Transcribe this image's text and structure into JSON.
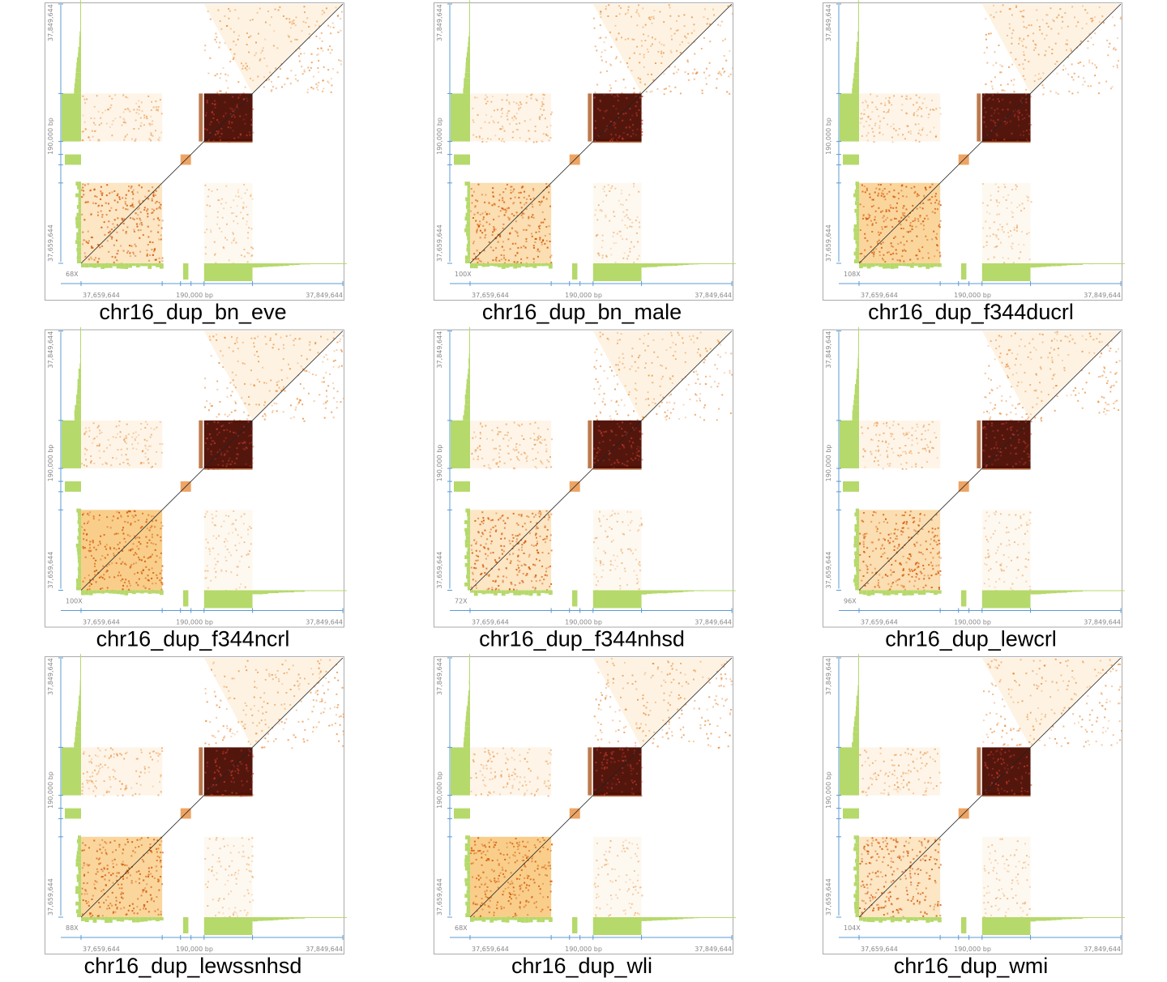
{
  "axis_labels": {
    "start": "37,659,644",
    "span": "190,000 bp",
    "end": "37,849,644"
  },
  "panels": [
    {
      "title": "chr16_dup_bn_eve",
      "coverage": "68X"
    },
    {
      "title": "chr16_dup_bn_male",
      "coverage": "100X"
    },
    {
      "title": "chr16_dup_f344ducrl",
      "coverage": "108X"
    },
    {
      "title": "chr16_dup_f344ncrl",
      "coverage": "100X"
    },
    {
      "title": "chr16_dup_f344nhsd",
      "coverage": "72X"
    },
    {
      "title": "chr16_dup_lewcrl",
      "coverage": "96X"
    },
    {
      "title": "chr16_dup_lewssnhsd",
      "coverage": "88X"
    },
    {
      "title": "chr16_dup_wli",
      "coverage": "68X"
    },
    {
      "title": "chr16_dup_wmi",
      "coverage": "104X"
    }
  ]
}
